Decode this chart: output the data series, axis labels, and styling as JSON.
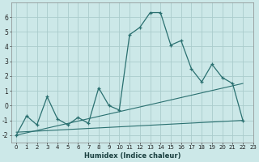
{
  "xlabel": "Humidex (Indice chaleur)",
  "background_color": "#cce8e8",
  "grid_color": "#aacccc",
  "line_color": "#2a7070",
  "series1_x": [
    0,
    1,
    2,
    3,
    4,
    5,
    6,
    7,
    8,
    9,
    10,
    11,
    12,
    13,
    14,
    15,
    16,
    17,
    18,
    19,
    20,
    21,
    22
  ],
  "series1_y": [
    -2.0,
    -0.7,
    -1.3,
    0.6,
    -0.9,
    -1.3,
    -0.8,
    -1.2,
    1.2,
    0.0,
    -0.3,
    4.8,
    5.3,
    6.3,
    6.3,
    4.1,
    4.4,
    2.5,
    1.6,
    2.8,
    1.9,
    1.5,
    -1.0
  ],
  "series2_x": [
    0,
    22
  ],
  "series2_y": [
    -2.0,
    1.5
  ],
  "series3_x": [
    0,
    22
  ],
  "series3_y": [
    -1.8,
    -1.0
  ],
  "xlim": [
    -0.5,
    23
  ],
  "ylim": [
    -2.5,
    7.0
  ],
  "yticks": [
    -2,
    -1,
    0,
    1,
    2,
    3,
    4,
    5,
    6
  ],
  "xticks": [
    0,
    1,
    2,
    3,
    4,
    5,
    6,
    7,
    8,
    9,
    10,
    11,
    12,
    13,
    14,
    15,
    16,
    17,
    18,
    19,
    20,
    21,
    22,
    23
  ],
  "figsize": [
    3.2,
    2.0
  ],
  "dpi": 100
}
